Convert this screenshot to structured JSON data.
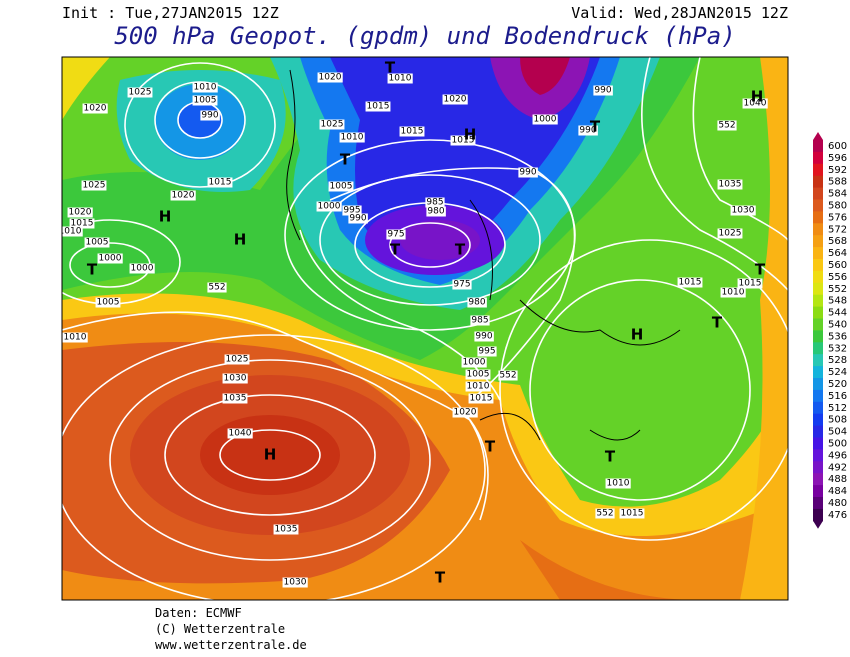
{
  "header": {
    "init": "Init : Tue,27JAN2015 12Z",
    "valid": "Valid: Wed,28JAN2015 12Z",
    "title": "500 hPa Geopot. (gpdm) und Bodendruck (hPa)"
  },
  "map": {
    "isobar_labels": [
      "1020",
      "1025",
      "1010",
      "1005",
      "990",
      "1015",
      "1020",
      "1025",
      "1020",
      "1015",
      "1010",
      "1005",
      "1000",
      "1000",
      "1005",
      "1010",
      "1020",
      "1010",
      "1015",
      "1025",
      "1010",
      "1005",
      "1000",
      "995",
      "990",
      "985",
      "980",
      "975",
      "1015",
      "1020",
      "1000",
      "990",
      "990",
      "990",
      "975",
      "980",
      "985",
      "990",
      "995",
      "1000",
      "1005",
      "1010",
      "1015",
      "1020",
      "1025",
      "1030",
      "1035",
      "1040",
      "1035",
      "1030",
      "1015",
      "1010",
      "1015",
      "1010",
      "1015",
      "1035",
      "1030",
      "1025",
      "1040",
      "1015",
      "552",
      "552",
      "552",
      "552"
    ],
    "centers": [
      "H",
      "H",
      "T",
      "T",
      "T",
      "T",
      "H",
      "T",
      "H",
      "T",
      "T",
      "H",
      "T",
      "T",
      "T",
      "H",
      "T"
    ]
  },
  "colorbar": {
    "levels": [
      600,
      596,
      592,
      588,
      584,
      580,
      576,
      572,
      568,
      564,
      560,
      556,
      552,
      548,
      544,
      540,
      536,
      532,
      528,
      524,
      520,
      516,
      512,
      508,
      504,
      500,
      496,
      492,
      488,
      484,
      480,
      476
    ],
    "colors": [
      "#b4004e",
      "#d2003c",
      "#e1141e",
      "#c83214",
      "#d2461e",
      "#dc5a1e",
      "#e66e14",
      "#f08c14",
      "#f5a014",
      "#fab414",
      "#fac814",
      "#f0dc14",
      "#dce614",
      "#b4e614",
      "#8cdc14",
      "#64d228",
      "#3cc83c",
      "#28c878",
      "#28c8b4",
      "#14b4dc",
      "#1496e6",
      "#1478f0",
      "#145af0",
      "#143cf0",
      "#2828e6",
      "#4614e6",
      "#6414dc",
      "#7814c8",
      "#8c14b4",
      "#7800a0",
      "#5a0078",
      "#3c0050"
    ]
  },
  "footer": {
    "lines": [
      "Daten: ECMWF",
      "(C) Wetterzentrale",
      "www.wetterzentrale.de"
    ]
  }
}
